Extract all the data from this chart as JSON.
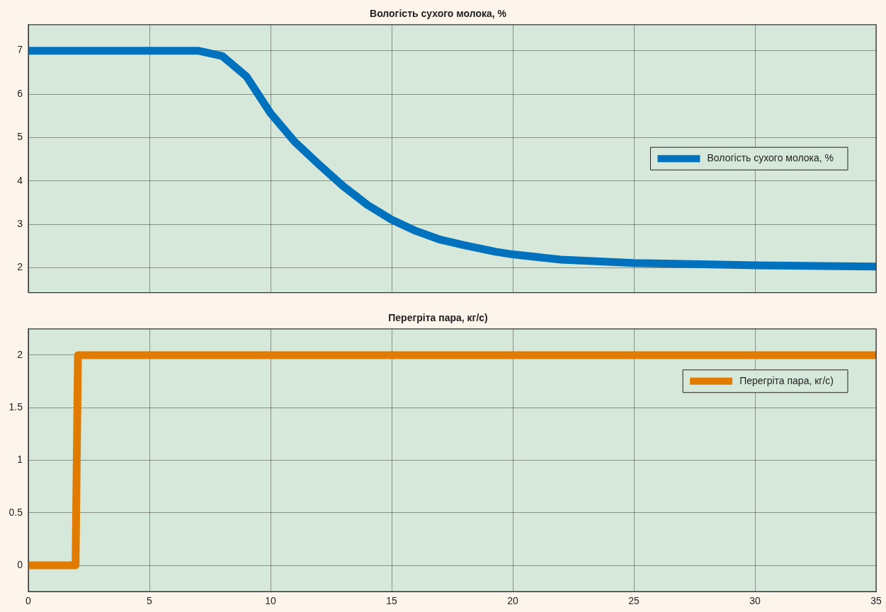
{
  "chart_data": [
    {
      "type": "line",
      "title": "Вологість сухого молока, %",
      "xlim": [
        0,
        35
      ],
      "xticks": [
        0,
        5,
        10,
        15,
        20,
        25,
        30,
        35
      ],
      "ylim": [
        1.43,
        7.6
      ],
      "yticks": [
        2,
        3,
        4,
        5,
        6,
        7
      ],
      "grid": true,
      "legend": "right",
      "tick_labels": "y",
      "line_style": "solid",
      "marker": "none",
      "series": [
        {
          "name": "Вологість сухого молока, %",
          "color": "#0072bd",
          "x": [
            0,
            7,
            8,
            9,
            10,
            11,
            12,
            12.5,
            13,
            14,
            15,
            16,
            17,
            18,
            19.3,
            20,
            22,
            25,
            30,
            35
          ],
          "values": [
            7,
            7,
            6.88,
            6.41,
            5.56,
            4.9,
            4.38,
            4.13,
            3.88,
            3.45,
            3.11,
            2.85,
            2.65,
            2.52,
            2.37,
            2.31,
            2.19,
            2.11,
            2.06,
            2.03
          ]
        }
      ]
    },
    {
      "type": "line",
      "title": "Перегріта пара, кг/с)",
      "xlim": [
        0,
        35
      ],
      "xticks": [
        0,
        5,
        10,
        15,
        20,
        25,
        30,
        35
      ],
      "ylim": [
        -0.25,
        2.25
      ],
      "yticks": [
        0,
        0.5,
        1,
        1.5,
        2
      ],
      "grid": true,
      "legend": "top right",
      "line_style": "solid",
      "marker": "none",
      "series": [
        {
          "name": "Перегріта пара, кг/с)",
          "color": "#e07b00",
          "x": [
            0,
            1.95,
            2.05,
            35
          ],
          "values": [
            0,
            0,
            2,
            2
          ]
        }
      ]
    }
  ]
}
